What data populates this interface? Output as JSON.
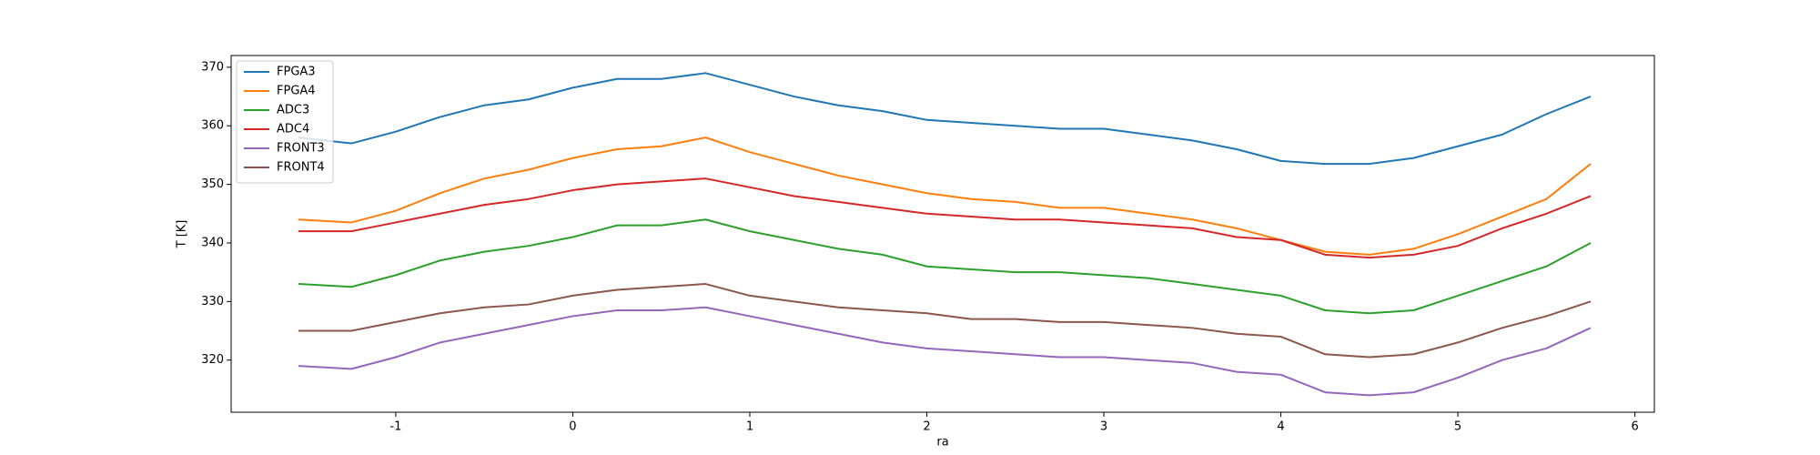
{
  "chart_data": {
    "type": "line",
    "xlabel": "ra",
    "ylabel": "T [K]",
    "x": [
      -1.55,
      -1.25,
      -1.0,
      -0.75,
      -0.5,
      -0.25,
      0,
      0.25,
      0.5,
      0.75,
      1.0,
      1.25,
      1.5,
      1.75,
      2.0,
      2.25,
      2.5,
      2.75,
      3.0,
      3.25,
      3.5,
      3.75,
      4.0,
      4.25,
      4.5,
      4.75,
      5.0,
      5.25,
      5.5,
      5.75
    ],
    "series": [
      {
        "name": "FPGA3",
        "color": "#1f77b4",
        "values": [
          358,
          357,
          359,
          361.5,
          363.5,
          364.5,
          366.5,
          368,
          368,
          369,
          367,
          365,
          363.5,
          362.5,
          361,
          360.5,
          360,
          359.5,
          359.5,
          358.5,
          357.5,
          356,
          354,
          353.5,
          353.5,
          354.5,
          356.5,
          358.5,
          362,
          365
        ]
      },
      {
        "name": "FPGA4",
        "color": "#ff7f0e",
        "values": [
          344,
          343.5,
          345.5,
          348.5,
          351,
          352.5,
          354.5,
          356,
          356.5,
          358,
          355.5,
          353.5,
          351.5,
          350,
          348.5,
          347.5,
          347,
          346,
          346,
          345,
          344,
          342.5,
          340.5,
          338.5,
          338,
          339,
          341.5,
          344.5,
          347.5,
          353.5
        ]
      },
      {
        "name": "ADC3",
        "color": "#2ca02c",
        "values": [
          333,
          332.5,
          334.5,
          337,
          338.5,
          339.5,
          341,
          343,
          343,
          344,
          342,
          340.5,
          339,
          338,
          336,
          335.5,
          335,
          335,
          334.5,
          334,
          333,
          332,
          331,
          328.5,
          328,
          328.5,
          331,
          333.5,
          336,
          340
        ]
      },
      {
        "name": "ADC4",
        "color": "#d62728",
        "values": [
          342,
          342,
          343.5,
          345,
          346.5,
          347.5,
          349,
          350,
          350.5,
          351,
          349.5,
          348,
          347,
          346,
          345,
          344.5,
          344,
          344,
          343.5,
          343,
          342.5,
          341,
          340.5,
          338,
          337.5,
          338,
          339.5,
          342.5,
          345,
          348
        ]
      },
      {
        "name": "FRONT3",
        "color": "#9467bd",
        "values": [
          319,
          318.5,
          320.5,
          323,
          324.5,
          326,
          327.5,
          328.5,
          328.5,
          329,
          327.5,
          326,
          324.5,
          323,
          322,
          321.5,
          321,
          320.5,
          320.5,
          320,
          319.5,
          318,
          317.5,
          314.5,
          314,
          314.5,
          317,
          320,
          322,
          325.5
        ]
      },
      {
        "name": "FRONT4",
        "color": "#8c564b",
        "values": [
          325,
          325,
          326.5,
          328,
          329,
          329.5,
          331,
          332,
          332.5,
          333,
          331,
          330,
          329,
          328.5,
          328,
          327,
          327,
          326.5,
          326.5,
          326,
          325.5,
          324.5,
          324,
          321,
          320.5,
          321,
          323,
          325.5,
          327.5,
          330
        ]
      }
    ],
    "xlim": [
      -1.93,
      6.11
    ],
    "ylim": [
      311.1,
      372.0
    ],
    "xticks": [
      -1,
      0,
      1,
      2,
      3,
      4,
      5,
      6
    ],
    "yticks": [
      320,
      330,
      340,
      350,
      360,
      370
    ],
    "legend": "upper left"
  }
}
